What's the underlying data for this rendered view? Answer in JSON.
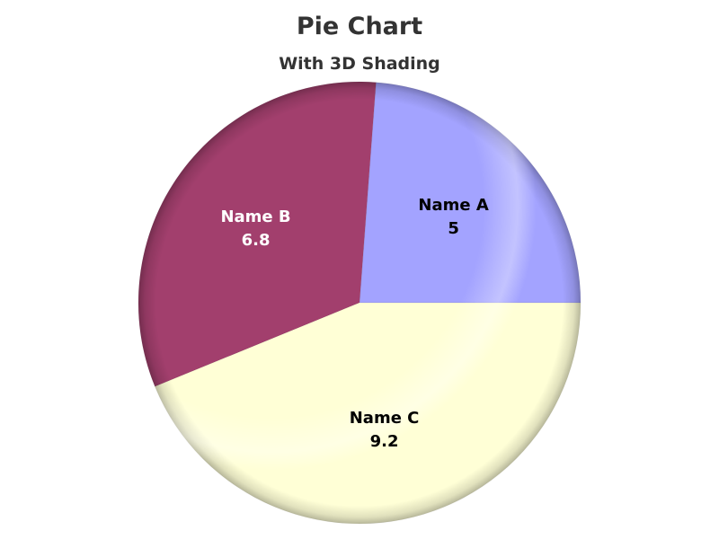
{
  "chart_data": {
    "type": "pie",
    "title": "Pie Chart",
    "subtitle": "With 3D Shading",
    "categories": [
      "Name A",
      "Name B",
      "Name C"
    ],
    "values": [
      5,
      6.8,
      9.2
    ],
    "value_labels": [
      "5",
      "6.8",
      "9.2"
    ],
    "colors": [
      "#a3a3ff",
      "#a23f6d",
      "#ffffd6"
    ],
    "label_colors": [
      "#000000",
      "#ffffff",
      "#000000"
    ],
    "start_angle_deg": 0,
    "direction": "counterclockwise",
    "shading": "3d",
    "legend": "none"
  }
}
